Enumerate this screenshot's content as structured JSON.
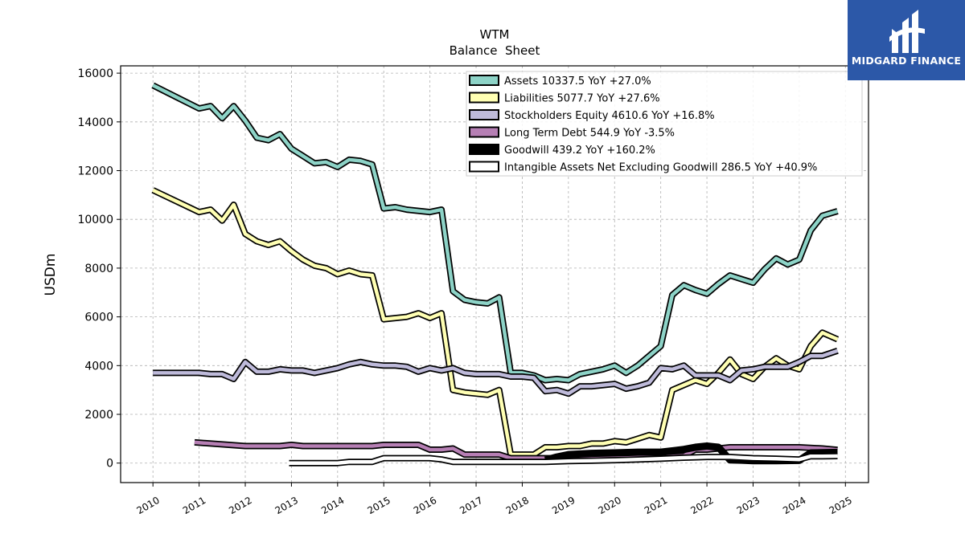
{
  "chart_data": {
    "type": "line",
    "title": "WTM",
    "subtitle": "Balance  Sheet",
    "ylabel": "USDm",
    "xlabel": "",
    "ylim": [
      -800,
      16300
    ],
    "xlim": [
      2009.3,
      2025.5
    ],
    "yticks": [
      0,
      2000,
      4000,
      6000,
      8000,
      10000,
      12000,
      14000,
      16000
    ],
    "xticks": [
      "2010",
      "2011",
      "2012",
      "2013",
      "2014",
      "2015",
      "2016",
      "2017",
      "2018",
      "2019",
      "2020",
      "2021",
      "2022",
      "2023",
      "2024",
      "2025"
    ],
    "grid": true,
    "legend_position": "top-right",
    "series": [
      {
        "name": "Assets  10337.5 YoY +27.0%",
        "color": "#8dd3c7",
        "x": [
          2010.0,
          2011.0,
          2011.25,
          2011.5,
          2011.75,
          2012.0,
          2012.25,
          2012.5,
          2012.75,
          2013.0,
          2013.25,
          2013.5,
          2013.75,
          2014.0,
          2014.25,
          2014.5,
          2014.75,
          2015.0,
          2015.25,
          2015.5,
          2015.75,
          2016.0,
          2016.25,
          2016.5,
          2016.75,
          2017.0,
          2017.25,
          2017.5,
          2017.75,
          2018.0,
          2018.25,
          2018.5,
          2018.75,
          2019.0,
          2019.25,
          2019.5,
          2019.75,
          2020.0,
          2020.25,
          2020.5,
          2020.75,
          2021.0,
          2021.25,
          2021.5,
          2021.75,
          2022.0,
          2022.25,
          2022.5,
          2022.75,
          2023.0,
          2023.25,
          2023.5,
          2023.75,
          2024.0,
          2024.25,
          2024.5,
          2024.83
        ],
        "values": [
          15500,
          14550,
          14650,
          14150,
          14650,
          14050,
          13350,
          13250,
          13500,
          12900,
          12600,
          12300,
          12350,
          12150,
          12450,
          12400,
          12250,
          10450,
          10500,
          10400,
          10350,
          10300,
          10400,
          7050,
          6700,
          6600,
          6550,
          6800,
          3700,
          3700,
          3600,
          3400,
          3450,
          3400,
          3650,
          3750,
          3850,
          4000,
          3700,
          4000,
          4400,
          4800,
          6900,
          7300,
          7100,
          6950,
          7350,
          7700,
          7550,
          7400,
          7950,
          8400,
          8150,
          8350,
          9550,
          10150,
          10337
        ]
      },
      {
        "name": "Liabilities  5077.7 YoY +27.6%",
        "color": "#ffffb3",
        "x": [
          2010.0,
          2011.0,
          2011.25,
          2011.5,
          2011.75,
          2012.0,
          2012.25,
          2012.5,
          2012.75,
          2013.0,
          2013.25,
          2013.5,
          2013.75,
          2014.0,
          2014.25,
          2014.5,
          2014.75,
          2015.0,
          2015.25,
          2015.5,
          2015.75,
          2016.0,
          2016.25,
          2016.5,
          2016.75,
          2017.0,
          2017.25,
          2017.5,
          2017.75,
          2018.0,
          2018.25,
          2018.5,
          2018.75,
          2019.0,
          2019.25,
          2019.5,
          2019.75,
          2020.0,
          2020.25,
          2020.5,
          2020.75,
          2021.0,
          2021.25,
          2021.5,
          2021.75,
          2022.0,
          2022.25,
          2022.5,
          2022.75,
          2023.0,
          2023.25,
          2023.5,
          2023.75,
          2024.0,
          2024.25,
          2024.5,
          2024.83
        ],
        "values": [
          11200,
          10300,
          10400,
          9950,
          10600,
          9400,
          9100,
          8950,
          9100,
          8700,
          8350,
          8100,
          8000,
          7750,
          7900,
          7750,
          7700,
          5900,
          5950,
          6000,
          6150,
          5950,
          6150,
          3000,
          2900,
          2850,
          2800,
          3000,
          350,
          350,
          350,
          650,
          650,
          700,
          700,
          800,
          800,
          900,
          850,
          1000,
          1150,
          1050,
          3000,
          3200,
          3400,
          3250,
          3700,
          4250,
          3650,
          3450,
          3950,
          4300,
          4000,
          3850,
          4800,
          5350,
          5078
        ]
      },
      {
        "name": "Stockholders Equity  4610.6 YoY +16.8%",
        "color": "#bebada",
        "x": [
          2010.0,
          2011.0,
          2011.25,
          2011.5,
          2011.75,
          2012.0,
          2012.25,
          2012.5,
          2012.75,
          2013.0,
          2013.25,
          2013.5,
          2013.75,
          2014.0,
          2014.25,
          2014.5,
          2014.75,
          2015.0,
          2015.25,
          2015.5,
          2015.75,
          2016.0,
          2016.25,
          2016.5,
          2016.75,
          2017.0,
          2017.25,
          2017.5,
          2017.75,
          2018.0,
          2018.25,
          2018.5,
          2018.75,
          2019.0,
          2019.25,
          2019.5,
          2019.75,
          2020.0,
          2020.25,
          2020.5,
          2020.75,
          2021.0,
          2021.25,
          2021.5,
          2021.75,
          2022.0,
          2022.25,
          2022.5,
          2022.75,
          2023.0,
          2023.25,
          2023.5,
          2023.75,
          2024.0,
          2024.25,
          2024.5,
          2024.83
        ],
        "values": [
          3700,
          3700,
          3650,
          3650,
          3450,
          4150,
          3750,
          3750,
          3850,
          3800,
          3800,
          3700,
          3800,
          3900,
          4050,
          4150,
          4050,
          4000,
          4000,
          3950,
          3750,
          3900,
          3800,
          3900,
          3700,
          3650,
          3650,
          3650,
          3550,
          3550,
          3500,
          2950,
          3000,
          2850,
          3150,
          3150,
          3200,
          3250,
          3050,
          3150,
          3300,
          3900,
          3850,
          4000,
          3600,
          3600,
          3600,
          3400,
          3800,
          3850,
          3950,
          3950,
          3950,
          4150,
          4400,
          4400,
          4611
        ]
      },
      {
        "name": "Long Term Debt  544.9 YoY -3.5%",
        "color": "#b67fb4",
        "x": [
          2010.9,
          2012.0,
          2012.75,
          2013.0,
          2013.25,
          2013.75,
          2014.0,
          2014.5,
          2014.75,
          2015.0,
          2015.5,
          2015.75,
          2016.0,
          2016.25,
          2016.5,
          2016.75,
          2017.0,
          2017.25,
          2017.5,
          2017.75,
          2018.0,
          2018.5,
          2019.0,
          2019.5,
          2020.0,
          2020.5,
          2021.0,
          2021.5,
          2021.75,
          2022.0,
          2022.5,
          2022.75,
          2023.0,
          2023.5,
          2024.0,
          2024.5,
          2024.83
        ],
        "values": [
          850,
          700,
          700,
          750,
          700,
          700,
          700,
          700,
          700,
          750,
          750,
          750,
          550,
          550,
          600,
          350,
          350,
          350,
          350,
          200,
          200,
          200,
          200,
          250,
          250,
          250,
          250,
          300,
          550,
          550,
          650,
          650,
          650,
          650,
          650,
          600,
          545
        ]
      },
      {
        "name": "Goodwill  439.2 YoY +160.2%",
        "color": "#000000",
        "x": [
          2018.5,
          2018.75,
          2019.0,
          2019.5,
          2020.0,
          2020.5,
          2021.0,
          2021.25,
          2021.5,
          2021.75,
          2022.0,
          2022.25,
          2022.5,
          2022.75,
          2023.0,
          2023.5,
          2024.0,
          2024.25,
          2024.5,
          2024.83
        ],
        "values": [
          120,
          250,
          350,
          400,
          420,
          450,
          450,
          500,
          560,
          650,
          700,
          650,
          130,
          120,
          100,
          100,
          110,
          420,
          430,
          439
        ]
      },
      {
        "name": "Intangible Assets Net Excluding Goodwill  286.5 YoY +40.9%",
        "color": "#ffffff",
        "x": [
          2012.95,
          2014.0,
          2014.25,
          2014.75,
          2015.0,
          2015.5,
          2016.0,
          2016.25,
          2016.5,
          2017.0,
          2017.5,
          2017.75,
          2018.0,
          2018.5,
          2019.0,
          2019.5,
          2020.0,
          2020.5,
          2021.0,
          2021.5,
          2022.0,
          2022.5,
          2023.0,
          2023.5,
          2024.0,
          2024.25,
          2024.5,
          2024.83
        ],
        "values": [
          0,
          0,
          50,
          50,
          200,
          200,
          200,
          150,
          50,
          50,
          50,
          50,
          50,
          50,
          80,
          100,
          120,
          150,
          180,
          220,
          250,
          250,
          200,
          180,
          150,
          280,
          280,
          287
        ]
      }
    ]
  },
  "watermark": {
    "brand": "MIDGARD FINANCE",
    "background": "#2c58a8"
  }
}
